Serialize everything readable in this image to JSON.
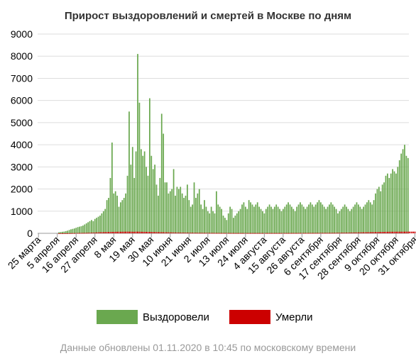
{
  "chart_data": {
    "type": "bar",
    "title": "Прирост выздоровлений и смертей в Москве по дням",
    "footer": "Данные обновлены 01.11.2020 в 10:45 по московскому времени",
    "ylim": [
      0,
      9000
    ],
    "yticks": [
      "0",
      "1000",
      "2000",
      "3000",
      "4000",
      "5000",
      "6000",
      "7000",
      "8000",
      "9000"
    ],
    "grid": true,
    "legend_position": "bottom-center",
    "xtick_labels": [
      "25 марта",
      "5 апреля",
      "16 апреля",
      "27 апреля",
      "8 мая",
      "19 мая",
      "30 мая",
      "10 июня",
      "21 июня",
      "2 июля",
      "13 июля",
      "24 июля",
      "4 августа",
      "15 августа",
      "26 августа",
      "6 сентября",
      "17 сентября",
      "28 сентября",
      "9 октября",
      "20 октября",
      "31 октября"
    ],
    "xtick_step_days": 11,
    "series": [
      {
        "name": "Выздоровели",
        "color": "#6aa84f",
        "values": [
          0,
          0,
          0,
          0,
          0,
          0,
          0,
          0,
          0,
          0,
          0,
          0,
          50,
          60,
          70,
          80,
          100,
          120,
          150,
          180,
          200,
          220,
          250,
          280,
          300,
          320,
          350,
          400,
          450,
          500,
          550,
          600,
          550,
          650,
          700,
          750,
          800,
          900,
          1000,
          1100,
          1500,
          1600,
          2500,
          4100,
          1800,
          1900,
          1700,
          1200,
          1400,
          1500,
          1600,
          1800,
          2600,
          5500,
          3100,
          3900,
          2500,
          3700,
          8100,
          5900,
          3800,
          3500,
          3700,
          3000,
          2600,
          6100,
          3500,
          2900,
          3100,
          2200,
          1700,
          2500,
          5400,
          4500,
          2300,
          2300,
          1800,
          1900,
          2000,
          2900,
          1700,
          2100,
          2000,
          2100,
          1800,
          1600,
          1700,
          2200,
          1500,
          1200,
          1300,
          2300,
          1600,
          1800,
          2000,
          1300,
          1100,
          1500,
          1200,
          1000,
          900,
          1200,
          1000,
          900,
          1900,
          1300,
          1200,
          1100,
          800,
          700,
          600,
          900,
          1200,
          1100,
          700,
          800,
          900,
          1000,
          1100,
          1300,
          1400,
          1200,
          1100,
          1500,
          1400,
          1300,
          1200,
          1300,
          1400,
          1200,
          1100,
          1000,
          900,
          1100,
          1200,
          1300,
          1200,
          1100,
          1200,
          1300,
          1200,
          1100,
          1000,
          1100,
          1200,
          1300,
          1400,
          1300,
          1200,
          1100,
          1000,
          1200,
          1300,
          1400,
          1300,
          1200,
          1100,
          1200,
          1300,
          1400,
          1300,
          1200,
          1300,
          1400,
          1500,
          1400,
          1300,
          1200,
          1100,
          1200,
          1300,
          1400,
          1300,
          1200,
          1100,
          900,
          1000,
          1100,
          1200,
          1300,
          1200,
          1100,
          1000,
          1100,
          1200,
          1300,
          1400,
          1300,
          1200,
          1100,
          1200,
          1300,
          1400,
          1500,
          1400,
          1300,
          1500,
          1800,
          2000,
          2100,
          1900,
          2200,
          2300,
          2600,
          2700,
          2500,
          2700,
          2900,
          2800,
          2700,
          3000,
          3300,
          3600,
          3800,
          4000,
          3500,
          3400
        ]
      },
      {
        "name": "Умерли",
        "color": "#cc0000",
        "values": [
          0,
          0,
          0,
          0,
          0,
          0,
          0,
          0,
          0,
          0,
          0,
          0,
          1,
          2,
          2,
          3,
          4,
          5,
          6,
          8,
          10,
          10,
          12,
          14,
          15,
          16,
          18,
          20,
          22,
          25,
          28,
          30,
          32,
          35,
          40,
          45,
          48,
          50,
          52,
          55,
          58,
          60,
          62,
          65,
          66,
          68,
          70,
          72,
          70,
          72,
          74,
          75,
          76,
          75,
          74,
          72,
          70,
          74,
          76,
          72,
          70,
          68,
          66,
          65,
          64,
          62,
          60,
          58,
          56,
          55,
          54,
          52,
          50,
          48,
          46,
          45,
          44,
          42,
          40,
          38,
          36,
          35,
          34,
          33,
          32,
          31,
          30,
          29,
          28,
          27,
          26,
          25,
          24,
          23,
          22,
          22,
          21,
          20,
          20,
          19,
          18,
          18,
          17,
          17,
          16,
          16,
          15,
          15,
          15,
          14,
          14,
          14,
          13,
          13,
          13,
          12,
          12,
          12,
          12,
          12,
          12,
          12,
          12,
          12,
          12,
          12,
          12,
          12,
          12,
          12,
          12,
          12,
          12,
          12,
          12,
          12,
          12,
          12,
          12,
          12,
          12,
          12,
          12,
          13,
          13,
          13,
          13,
          13,
          14,
          14,
          14,
          14,
          15,
          15,
          15,
          15,
          16,
          16,
          16,
          17,
          17,
          17,
          18,
          18,
          18,
          19,
          19,
          20,
          20,
          21,
          21,
          22,
          22,
          23,
          24,
          25,
          26,
          27,
          28,
          29,
          30,
          31,
          32,
          34,
          35,
          37,
          38,
          40,
          42,
          44,
          45,
          47,
          48,
          50,
          52,
          54,
          55,
          57,
          58,
          60,
          62,
          63,
          65,
          67,
          68,
          70,
          70,
          71,
          72,
          72,
          73,
          73,
          74,
          74,
          75,
          75,
          76,
          76,
          76,
          77,
          77,
          76,
          75
        ]
      }
    ]
  }
}
